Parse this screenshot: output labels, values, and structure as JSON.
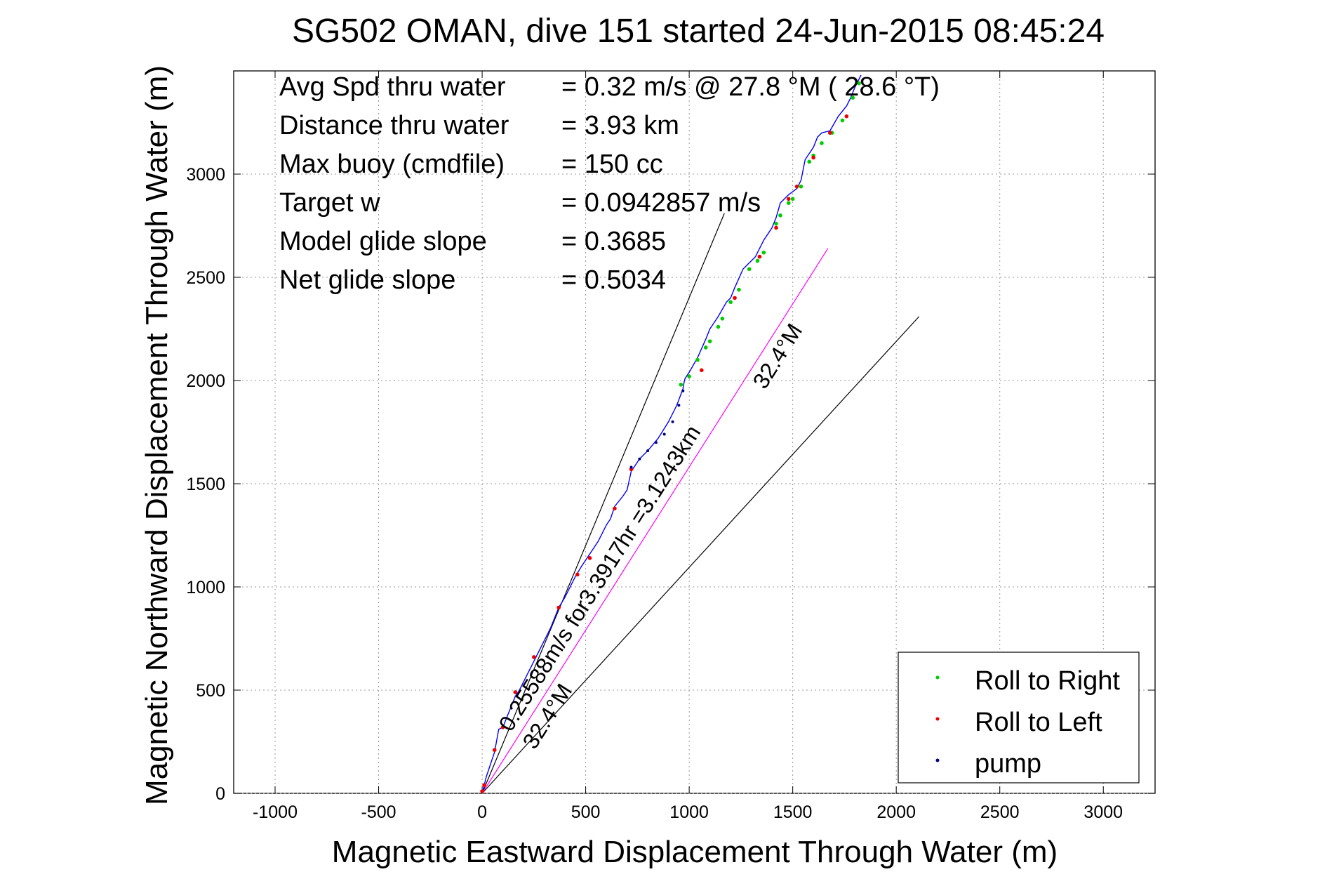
{
  "chart_data": {
    "type": "line",
    "title": "SG502 OMAN, dive 151 started 24-Jun-2015 08:45:24",
    "xlabel": "Magnetic Eastward Displacement Through Water (m)",
    "ylabel": "Magnetic Northward Displacement Through Water (m)",
    "xlim": [
      -1200,
      3250
    ],
    "ylim": [
      0,
      3500
    ],
    "xticks": [
      -1000,
      -500,
      0,
      500,
      1000,
      1500,
      2000,
      2500,
      3000
    ],
    "xtick_labels": [
      "-1000",
      "-500",
      "0",
      "500",
      "1000",
      "1500",
      "2000",
      "2500",
      "3000"
    ],
    "yticks": [
      0,
      500,
      1000,
      1500,
      2000,
      2500,
      3000
    ],
    "ytick_labels": [
      "0",
      "500",
      "1000",
      "1500",
      "2000",
      "2500",
      "3000"
    ],
    "grid": true,
    "legend_position": "bottom-right",
    "legend": [
      {
        "label": "Roll to Right",
        "color": "#00cc00"
      },
      {
        "label": "Roll to Left",
        "color": "#ee0000"
      },
      {
        "label": "pump",
        "color": "#000080"
      }
    ],
    "info_lines": [
      {
        "label": "Avg Spd thru water",
        "value": "=  0.32 m/s @  27.8 °M ( 28.6 °T)"
      },
      {
        "label": "Distance thru water",
        "value": "=  3.93 km"
      },
      {
        "label": "Max buoy (cmdfile)",
        "value": "= 150 cc"
      },
      {
        "label": "Target w",
        "value": "= 0.0942857 m/s"
      },
      {
        "label": "Model glide slope",
        "value": "= 0.3685"
      },
      {
        "label": "Net glide slope",
        "value": "= 0.5034"
      }
    ],
    "annotations": {
      "current_speed": "0.25588m/s for3.3917hr =3.1243km",
      "current_heading": "32.4°M",
      "current_heading_upper": "32.4°M"
    },
    "series": [
      {
        "name": "track",
        "color": "#0000ff",
        "x": [
          0,
          20,
          60,
          80,
          100,
          160,
          180,
          250,
          280,
          330,
          370,
          400,
          450,
          480,
          520,
          560,
          600,
          620,
          640,
          680,
          700,
          720,
          760,
          800,
          850,
          900,
          940,
          970,
          975,
          980,
          1000,
          1040,
          1080,
          1100,
          1140,
          1180,
          1200,
          1220,
          1260,
          1300,
          1320,
          1360,
          1400,
          1420,
          1440,
          1480,
          1520,
          1540,
          1560,
          1600,
          1620,
          1640,
          1680,
          1720,
          1760,
          1780,
          1800,
          1830
        ],
        "y": [
          0,
          80,
          200,
          310,
          320,
          470,
          500,
          640,
          700,
          800,
          900,
          950,
          1050,
          1100,
          1160,
          1220,
          1300,
          1330,
          1390,
          1440,
          1470,
          1560,
          1620,
          1660,
          1720,
          1800,
          1880,
          1960,
          1990,
          2010,
          2040,
          2110,
          2200,
          2250,
          2310,
          2380,
          2400,
          2450,
          2540,
          2580,
          2600,
          2680,
          2740,
          2790,
          2860,
          2900,
          2930,
          2970,
          3070,
          3130,
          3180,
          3200,
          3210,
          3280,
          3330,
          3370,
          3420,
          3480
        ]
      },
      {
        "name": "Roll to Right",
        "color": "#00cc00",
        "x": [
          960,
          1000,
          1040,
          1080,
          1100,
          1140,
          1160,
          1200,
          1240,
          1290,
          1330,
          1360,
          1420,
          1440,
          1480,
          1500,
          1540,
          1580,
          1600,
          1640,
          1690,
          1740,
          1790,
          1820
        ],
        "y": [
          1980,
          2020,
          2100,
          2160,
          2190,
          2260,
          2300,
          2380,
          2440,
          2540,
          2580,
          2620,
          2760,
          2800,
          2860,
          2880,
          2940,
          3060,
          3090,
          3150,
          3200,
          3260,
          3370,
          3440
        ]
      },
      {
        "name": "Roll to Left",
        "color": "#ee0000",
        "x": [
          0,
          10,
          60,
          100,
          160,
          250,
          370,
          460,
          520,
          640,
          720,
          1060,
          1220,
          1340,
          1420,
          1480,
          1520,
          1600,
          1680,
          1760
        ],
        "y": [
          10,
          40,
          210,
          320,
          490,
          660,
          900,
          1060,
          1140,
          1380,
          1570,
          2050,
          2400,
          2600,
          2740,
          2880,
          2940,
          3080,
          3200,
          3280
        ]
      },
      {
        "name": "pump",
        "color": "#000080",
        "x": [
          720,
          760,
          800,
          840,
          880,
          920,
          950,
          970
        ],
        "y": [
          1580,
          1620,
          1660,
          1700,
          1740,
          1800,
          1880,
          1950
        ]
      },
      {
        "name": "model_left",
        "color": "#000000",
        "x": [
          0,
          1170
        ],
        "y": [
          0,
          2810
        ]
      },
      {
        "name": "model_right",
        "color": "#000000",
        "x": [
          0,
          2110
        ],
        "y": [
          0,
          2310
        ]
      },
      {
        "name": "current",
        "color": "#ff00ff",
        "x": [
          0,
          1670
        ],
        "y": [
          0,
          2640
        ]
      }
    ]
  }
}
